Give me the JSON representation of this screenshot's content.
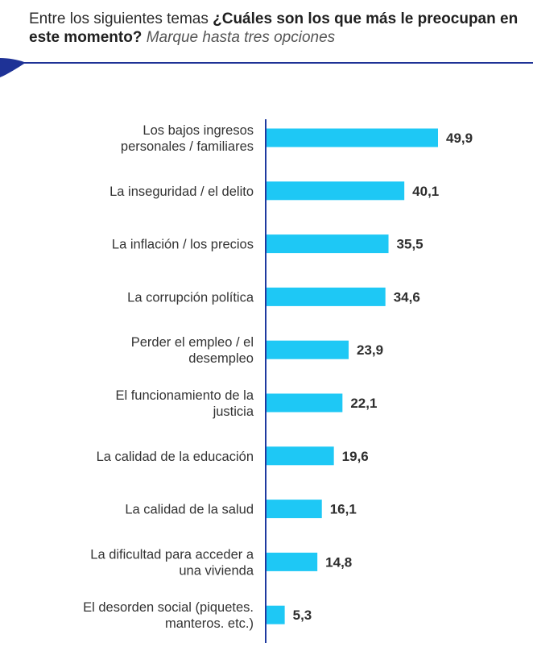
{
  "header": {
    "intro": "Entre los siguientes temas ",
    "question": "¿Cuáles son los que más le preocupan en este momento?",
    "instruction": "Marque hasta tres opciones"
  },
  "colors": {
    "bar": "#1ec8f5",
    "axis": "#1f3aa0",
    "band": "#1e3296"
  },
  "chart_data": {
    "type": "bar",
    "orientation": "horizontal",
    "categories": [
      [
        "Los bajos ingresos",
        "personales / familiares"
      ],
      [
        "La inseguridad / el delito"
      ],
      [
        "La inflación / los precios"
      ],
      [
        "La corrupción política"
      ],
      [
        "Perder el empleo / el",
        "desempleo"
      ],
      [
        "El funcionamiento de la",
        "justicia"
      ],
      [
        "La calidad de la educación"
      ],
      [
        "La calidad de la salud"
      ],
      [
        "La dificultad para acceder a",
        "una vivienda"
      ],
      [
        "El desorden social (piquetes.",
        "manteros. etc.)"
      ]
    ],
    "values": [
      49.9,
      40.1,
      35.5,
      34.6,
      23.9,
      22.1,
      19.6,
      16.1,
      14.8,
      5.3
    ],
    "value_labels": [
      "49,9",
      "40,1",
      "35,5",
      "34,6",
      "23,9",
      "22,1",
      "19,6",
      "16,1",
      "14,8",
      "5,3"
    ],
    "xlim": [
      0,
      60
    ],
    "title": "",
    "xlabel": "",
    "ylabel": "",
    "grid": false,
    "legend": "none"
  }
}
